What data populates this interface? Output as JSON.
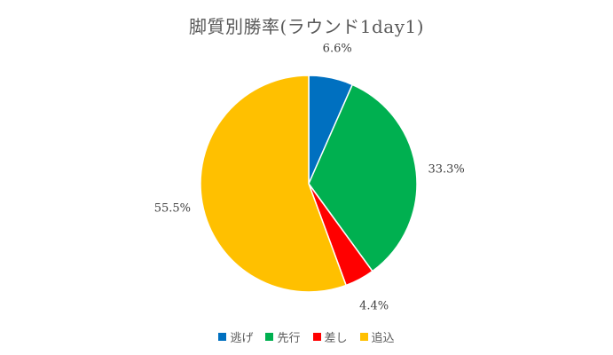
{
  "chart_data": {
    "type": "pie",
    "title": "脚質別勝率(ラウンド1day1)",
    "slices": [
      {
        "label": "逃げ",
        "value": 6.6,
        "display": "6.6%",
        "color": "#0070C0"
      },
      {
        "label": "先行",
        "value": 33.3,
        "display": "33.3%",
        "color": "#00B050"
      },
      {
        "label": "差し",
        "value": 4.4,
        "display": "4.4%",
        "color": "#FF0000"
      },
      {
        "label": "追込",
        "value": 55.5,
        "display": "55.5%",
        "color": "#FFC000"
      }
    ],
    "legend_position": "bottom"
  }
}
